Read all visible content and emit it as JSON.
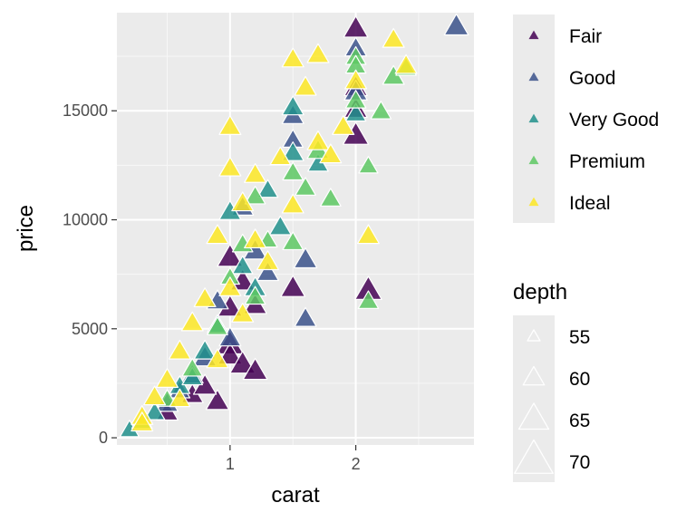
{
  "chart_data": {
    "type": "scatter",
    "xlabel": "carat",
    "ylabel": "price",
    "xlim": [
      0.1,
      2.94
    ],
    "ylim": [
      -330,
      19500
    ],
    "x_ticks": [
      1,
      2
    ],
    "y_ticks": [
      0,
      5000,
      10000,
      15000
    ],
    "x_tick_labels": [
      "1",
      "2"
    ],
    "y_tick_labels": [
      "0",
      "5000",
      "10000",
      "15000"
    ],
    "grid": true,
    "legend_position": "right",
    "marker": "triangle",
    "color_legend": {
      "title": "",
      "entries": [
        {
          "label": "Fair",
          "color": "#440154"
        },
        {
          "label": "Good",
          "color": "#3B528B"
        },
        {
          "label": "Very Good",
          "color": "#21908C"
        },
        {
          "label": "Premium",
          "color": "#5DC863"
        },
        {
          "label": "Ideal",
          "color": "#FDE725"
        }
      ]
    },
    "size_legend": {
      "title": "depth",
      "entries": [
        {
          "label": "55",
          "value": 55
        },
        {
          "label": "60",
          "value": 60
        },
        {
          "label": "65",
          "value": 65
        },
        {
          "label": "70",
          "value": 70
        }
      ]
    },
    "series": [
      {
        "name": "Fair",
        "points": [
          [
            2.0,
            18700,
            64
          ],
          [
            2.0,
            16000,
            63
          ],
          [
            2.0,
            13800,
            65
          ],
          [
            2.1,
            6700,
            66
          ],
          [
            1.0,
            8200,
            65
          ],
          [
            1.0,
            5900,
            64
          ],
          [
            1.0,
            4200,
            66
          ],
          [
            1.0,
            3700,
            64
          ],
          [
            1.1,
            3300,
            65
          ],
          [
            1.2,
            3000,
            64
          ],
          [
            1.5,
            6800,
            64
          ],
          [
            0.7,
            1900,
            62
          ],
          [
            0.9,
            1600,
            63
          ],
          [
            0.5,
            1100,
            62
          ],
          [
            1.2,
            6000,
            63
          ],
          [
            1.1,
            7100,
            64
          ],
          [
            0.8,
            2300,
            63
          ],
          [
            2.0,
            15000,
            63
          ]
        ]
      },
      {
        "name": "Good",
        "points": [
          [
            2.8,
            18800,
            64
          ],
          [
            2.0,
            17800,
            62
          ],
          [
            1.6,
            8100,
            63
          ],
          [
            1.5,
            14700,
            62
          ],
          [
            1.5,
            13600,
            61
          ],
          [
            1.1,
            10500,
            62
          ],
          [
            1.2,
            8500,
            63
          ],
          [
            0.9,
            6200,
            62
          ],
          [
            0.8,
            3600,
            63
          ],
          [
            0.7,
            2800,
            62
          ],
          [
            0.5,
            1500,
            62
          ],
          [
            1.6,
            5400,
            62
          ],
          [
            2.0,
            15800,
            63
          ],
          [
            1.3,
            7500,
            62
          ],
          [
            0.6,
            2100,
            61
          ],
          [
            1.0,
            4500,
            62
          ]
        ]
      },
      {
        "name": "Very Good",
        "points": [
          [
            1.5,
            15100,
            62
          ],
          [
            1.0,
            10300,
            62
          ],
          [
            1.1,
            7800,
            61
          ],
          [
            0.8,
            3900,
            62
          ],
          [
            0.6,
            2300,
            61
          ],
          [
            0.4,
            1100,
            61
          ],
          [
            0.2,
            300,
            60
          ],
          [
            1.5,
            13000,
            62
          ],
          [
            1.7,
            12500,
            61
          ],
          [
            2.0,
            14800,
            61
          ],
          [
            1.2,
            6800,
            62
          ],
          [
            1.4,
            9600,
            62
          ],
          [
            0.9,
            5100,
            61
          ],
          [
            1.3,
            11300,
            61
          ],
          [
            0.7,
            2700,
            61
          ]
        ]
      },
      {
        "name": "Premium",
        "points": [
          [
            2.0,
            17400,
            61
          ],
          [
            2.3,
            16500,
            62
          ],
          [
            2.0,
            15400,
            61
          ],
          [
            2.2,
            14900,
            61
          ],
          [
            2.1,
            12400,
            60
          ],
          [
            1.6,
            11400,
            61
          ],
          [
            1.7,
            13100,
            62
          ],
          [
            1.5,
            8900,
            61
          ],
          [
            1.2,
            11000,
            61
          ],
          [
            1.0,
            7300,
            60
          ],
          [
            1.2,
            6400,
            61
          ],
          [
            0.9,
            5000,
            61
          ],
          [
            0.7,
            3100,
            61
          ],
          [
            0.5,
            1700,
            60
          ],
          [
            0.3,
            700,
            61
          ],
          [
            1.5,
            12100,
            61
          ],
          [
            2.0,
            17000,
            61
          ],
          [
            2.1,
            6200,
            61
          ],
          [
            1.3,
            9000,
            60
          ],
          [
            1.8,
            10900,
            61
          ],
          [
            2.4,
            16900,
            61
          ],
          [
            1.1,
            8800,
            61
          ]
        ]
      },
      {
        "name": "Ideal",
        "points": [
          [
            2.3,
            18200,
            62
          ],
          [
            2.4,
            17000,
            62
          ],
          [
            1.7,
            17500,
            62
          ],
          [
            1.5,
            17300,
            62
          ],
          [
            2.0,
            16300,
            62
          ],
          [
            1.6,
            16000,
            62
          ],
          [
            1.0,
            14200,
            62
          ],
          [
            1.2,
            12000,
            62
          ],
          [
            1.0,
            12300,
            62
          ],
          [
            1.4,
            12800,
            61
          ],
          [
            2.1,
            9200,
            62
          ],
          [
            1.7,
            13500,
            62
          ],
          [
            1.8,
            12900,
            62
          ],
          [
            1.9,
            14200,
            62
          ],
          [
            1.1,
            10700,
            62
          ],
          [
            0.9,
            9200,
            62
          ],
          [
            1.2,
            9000,
            62
          ],
          [
            0.8,
            6300,
            62
          ],
          [
            0.7,
            5200,
            62
          ],
          [
            0.6,
            3900,
            62
          ],
          [
            0.5,
            2600,
            62
          ],
          [
            0.4,
            1800,
            62
          ],
          [
            0.3,
            900,
            62
          ],
          [
            0.3,
            600,
            62
          ],
          [
            1.0,
            6800,
            62
          ],
          [
            1.1,
            5600,
            62
          ],
          [
            0.9,
            3500,
            62
          ],
          [
            1.3,
            8000,
            62
          ],
          [
            1.5,
            10600,
            62
          ],
          [
            0.6,
            1700,
            61
          ]
        ]
      }
    ]
  }
}
